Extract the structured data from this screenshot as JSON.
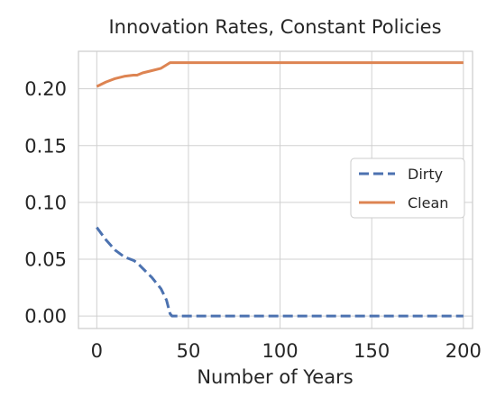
{
  "chart_data": {
    "type": "line",
    "title": "Innovation Rates, Constant Policies",
    "xlabel": "Number of Years",
    "ylabel": "",
    "xlim": [
      -10,
      205
    ],
    "ylim": [
      -0.011,
      0.233
    ],
    "xticks": [
      0,
      50,
      100,
      150,
      200
    ],
    "xtick_labels": [
      "0",
      "50",
      "100",
      "150",
      "200"
    ],
    "yticks": [
      0.0,
      0.05,
      0.1,
      0.15,
      0.2
    ],
    "ytick_labels": [
      "0.00",
      "0.05",
      "0.10",
      "0.15",
      "0.20"
    ],
    "grid": true,
    "legend_position": "right",
    "series": [
      {
        "name": "Dirty",
        "color": "#4c72b0",
        "dash": "dashed",
        "x": [
          0,
          5,
          10,
          15,
          20,
          22,
          25,
          30,
          35,
          38,
          40,
          41,
          50,
          100,
          150,
          200
        ],
        "y": [
          0.078,
          0.067,
          0.058,
          0.052,
          0.049,
          0.047,
          0.042,
          0.034,
          0.024,
          0.014,
          0.002,
          0.0,
          0.0,
          0.0,
          0.0,
          0.0
        ]
      },
      {
        "name": "Clean",
        "color": "#dd8452",
        "dash": "solid",
        "x": [
          0,
          5,
          10,
          15,
          20,
          22,
          25,
          30,
          35,
          38,
          40,
          41,
          50,
          100,
          150,
          200
        ],
        "y": [
          0.202,
          0.206,
          0.209,
          0.211,
          0.212,
          0.212,
          0.214,
          0.216,
          0.218,
          0.221,
          0.223,
          0.223,
          0.223,
          0.223,
          0.223,
          0.223
        ]
      }
    ]
  }
}
